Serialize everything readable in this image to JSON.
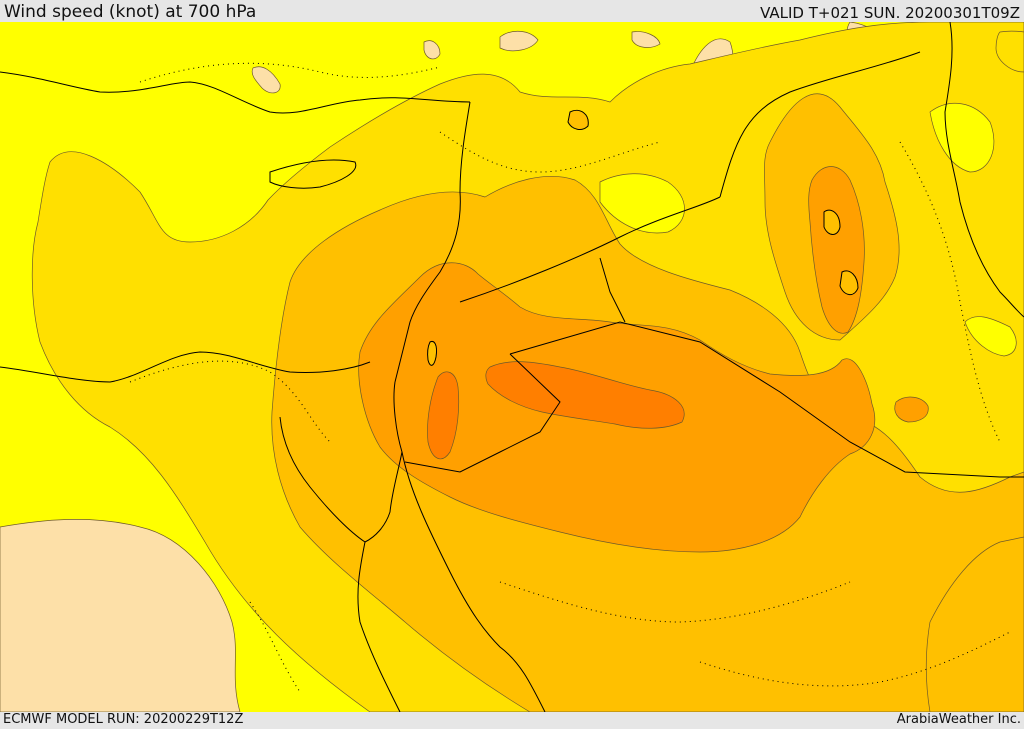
{
  "header": {
    "title": "Wind speed (knot) at 700 hPa",
    "valid_time": "VALID T+021 SUN. 20200301T09Z"
  },
  "footer": {
    "model_run": "ECMWF MODEL RUN: 20200229T12Z",
    "credit": "ArabiaWeather Inc."
  },
  "map": {
    "colors": {
      "calm": "#fde0a8",
      "band1": "#ffff00",
      "band2": "#ffe000",
      "band3": "#ffc000",
      "band4": "#ffa000",
      "band5": "#ff7f00",
      "contour": "#6e5a2a",
      "coastline": "#000000"
    }
  }
}
